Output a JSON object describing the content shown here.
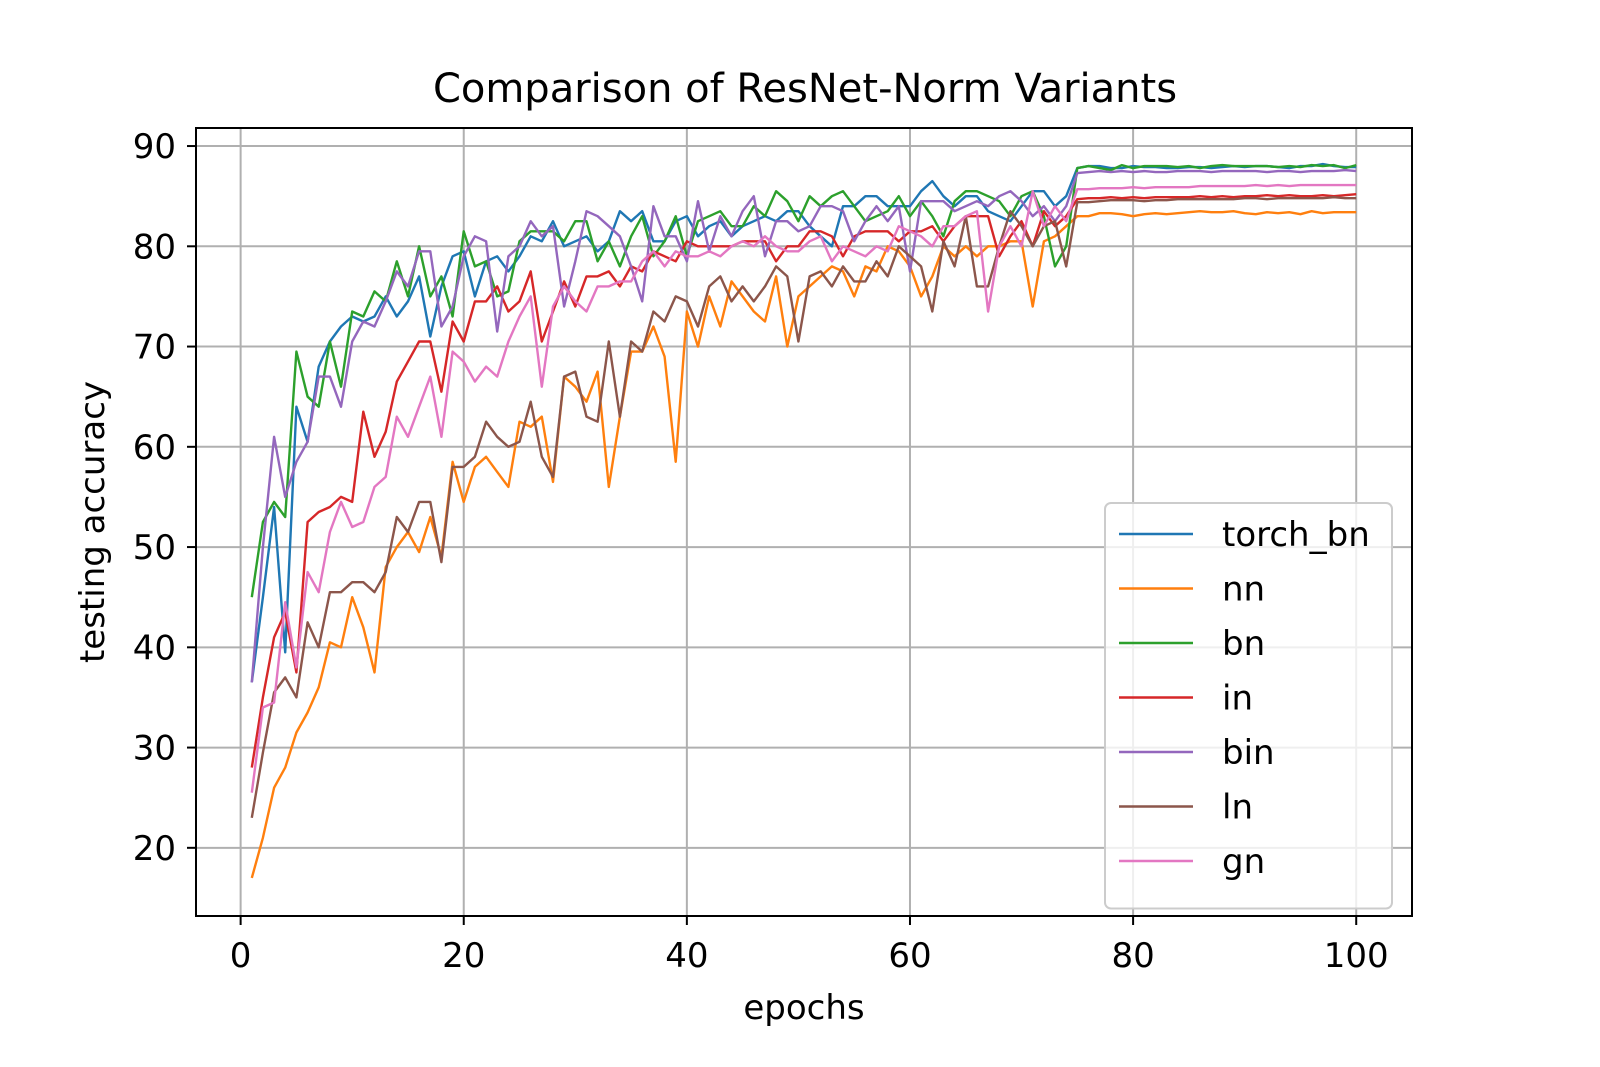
{
  "chart_data": {
    "type": "line",
    "title": "Comparison of ResNet-Norm Variants",
    "xlabel": "epochs",
    "ylabel": "testing accuracy",
    "xlim": [
      -4,
      105
    ],
    "ylim": [
      13.2,
      91.8
    ],
    "xticks": [
      0,
      20,
      40,
      60,
      80,
      100
    ],
    "yticks": [
      20,
      30,
      40,
      50,
      60,
      70,
      80,
      90
    ],
    "grid": true,
    "legend_position": "lower right",
    "x": [
      1,
      2,
      3,
      4,
      5,
      6,
      7,
      8,
      9,
      10,
      11,
      12,
      13,
      14,
      15,
      16,
      17,
      18,
      19,
      20,
      21,
      22,
      23,
      24,
      25,
      26,
      27,
      28,
      29,
      30,
      31,
      32,
      33,
      34,
      35,
      36,
      37,
      38,
      39,
      40,
      41,
      42,
      43,
      44,
      45,
      46,
      47,
      48,
      49,
      50,
      51,
      52,
      53,
      54,
      55,
      56,
      57,
      58,
      59,
      60,
      61,
      62,
      63,
      64,
      65,
      66,
      67,
      68,
      69,
      70,
      71,
      72,
      73,
      74,
      75,
      76,
      77,
      78,
      79,
      80,
      81,
      82,
      83,
      84,
      85,
      86,
      87,
      88,
      89,
      90,
      91,
      92,
      93,
      94,
      95,
      96,
      97,
      98,
      99,
      100
    ],
    "series": [
      {
        "name": "torch_bn",
        "color": "#1f77b4",
        "values": [
          36.5,
          45,
          54,
          39.5,
          64,
          60.5,
          68,
          70.5,
          72,
          73,
          72.5,
          73,
          75,
          73,
          74.5,
          77,
          71,
          76,
          79,
          79.5,
          75,
          78.5,
          79,
          77.5,
          79,
          81,
          80.5,
          82.5,
          80,
          80.5,
          81,
          79.5,
          80.5,
          83.5,
          82.5,
          83.5,
          80.5,
          80.5,
          82.5,
          83,
          81,
          82,
          82.5,
          81,
          82,
          82.5,
          83,
          82.5,
          83.5,
          83.5,
          82,
          81,
          80,
          84,
          84,
          85,
          85,
          84,
          84,
          84,
          85.5,
          86.5,
          85,
          84,
          85,
          85,
          83.5,
          83,
          82.5,
          84,
          85.5,
          85.5,
          84,
          85,
          87.8,
          88,
          88,
          87.8,
          87.8,
          88,
          87.9,
          87.9,
          87.8,
          87.8,
          87.9,
          87.9,
          87.8,
          87.9,
          88,
          87.9,
          88,
          88,
          87.9,
          87.8,
          88,
          88,
          88.2,
          88,
          87.9,
          87.9
        ]
      },
      {
        "name": "nn",
        "color": "#ff7f0e",
        "values": [
          17,
          21,
          26,
          28,
          31.5,
          33.5,
          36,
          40.5,
          40,
          45,
          42,
          37.5,
          48,
          50,
          51.5,
          49.5,
          53,
          49,
          58.5,
          54.5,
          58,
          59,
          57.5,
          56,
          62.5,
          62,
          63,
          56.5,
          67,
          66,
          64.5,
          67.5,
          56,
          63,
          69.5,
          69.5,
          72,
          69,
          58.5,
          73.5,
          70,
          75,
          72,
          76.5,
          75,
          73.5,
          72.5,
          77,
          70,
          75,
          76,
          77,
          78,
          77.5,
          75,
          78,
          77.5,
          80,
          79.5,
          78,
          75,
          77,
          80,
          79,
          80,
          79,
          80,
          80,
          80.5,
          80.5,
          74,
          80.5,
          81,
          82,
          83,
          83,
          83.3,
          83.3,
          83.2,
          83,
          83.2,
          83.3,
          83.2,
          83.3,
          83.4,
          83.5,
          83.4,
          83.4,
          83.5,
          83.3,
          83.2,
          83.4,
          83.3,
          83.4,
          83.2,
          83.5,
          83.3,
          83.4,
          83.4,
          83.4
        ]
      },
      {
        "name": "bn",
        "color": "#2ca02c",
        "values": [
          45,
          52.5,
          54.5,
          53,
          69.5,
          65,
          64,
          70.5,
          66,
          73.5,
          73,
          75.5,
          74.5,
          78.5,
          75,
          80,
          75,
          77,
          73,
          81.5,
          78,
          78.5,
          75,
          75.5,
          80.5,
          81.5,
          81.5,
          81.5,
          80.5,
          82.5,
          82.5,
          78.5,
          80.5,
          78,
          81,
          83,
          79,
          80.5,
          83,
          79,
          82.5,
          83,
          83.5,
          82,
          82,
          84,
          83,
          85.5,
          84.5,
          82.5,
          85,
          84,
          85,
          85.5,
          84,
          82.5,
          83,
          83.5,
          85,
          83,
          84.5,
          83,
          81,
          84.5,
          85.5,
          85.5,
          85,
          84.5,
          83,
          85,
          85.5,
          83,
          78,
          80,
          87.8,
          88,
          87.8,
          87.6,
          88.1,
          87.8,
          88,
          88,
          88,
          87.9,
          88,
          87.8,
          88,
          88.1,
          88,
          88,
          88,
          88,
          87.9,
          88,
          87.9,
          88.1,
          88,
          88.1,
          87.8,
          88.1
        ]
      },
      {
        "name": "in",
        "color": "#d62728",
        "values": [
          28,
          35,
          41,
          43.5,
          37.5,
          52.5,
          53.5,
          54,
          55,
          54.5,
          63.5,
          59,
          61.5,
          66.5,
          68.5,
          70.5,
          70.5,
          65.5,
          72.5,
          70.5,
          74.5,
          74.5,
          76,
          73.5,
          74.5,
          77.5,
          70.5,
          73.5,
          76.5,
          74,
          77,
          77,
          77.5,
          76,
          78,
          77.5,
          79.5,
          79,
          78.5,
          80.5,
          80,
          80,
          80,
          80,
          80.5,
          80.5,
          80.5,
          78.5,
          80,
          80,
          81.5,
          81.5,
          81,
          79,
          81,
          81.5,
          81.5,
          81.5,
          80.5,
          81.5,
          81.5,
          82,
          80.5,
          82,
          83,
          83,
          83,
          79,
          81,
          82.5,
          80,
          83.5,
          82,
          83,
          84.7,
          84.8,
          84.8,
          84.9,
          84.8,
          84.9,
          84.8,
          84.9,
          84.9,
          84.9,
          84.9,
          85,
          84.9,
          85,
          84.9,
          85,
          85,
          85.1,
          85,
          85.1,
          85,
          85,
          85.1,
          85,
          85.1,
          85.2
        ]
      },
      {
        "name": "bin",
        "color": "#9467bd",
        "values": [
          36.5,
          50,
          61,
          55,
          58.5,
          60.5,
          67,
          67,
          64,
          70.5,
          72.5,
          72,
          74.5,
          77.5,
          76,
          79.5,
          79.5,
          72,
          74,
          79,
          81,
          80.5,
          71.5,
          79,
          80,
          82.5,
          81,
          82,
          74,
          78.5,
          83.5,
          83,
          82,
          81,
          78,
          74.5,
          84,
          81,
          81,
          78.5,
          84.5,
          79.5,
          83,
          81,
          83.5,
          85,
          79,
          82.5,
          82.5,
          81.5,
          82,
          84,
          84,
          83.5,
          80.5,
          82.5,
          84,
          82.5,
          84,
          77.5,
          84.5,
          84.5,
          84.5,
          83.5,
          84,
          84.5,
          84,
          85,
          85.5,
          84.5,
          83,
          84,
          82.5,
          84,
          87.3,
          87.4,
          87.5,
          87.4,
          87.5,
          87.4,
          87.5,
          87.4,
          87.4,
          87.5,
          87.5,
          87.5,
          87.4,
          87.5,
          87.5,
          87.5,
          87.5,
          87.4,
          87.5,
          87.5,
          87.4,
          87.5,
          87.5,
          87.5,
          87.6,
          87.5
        ]
      },
      {
        "name": "ln",
        "color": "#8c564b",
        "values": [
          23,
          29.5,
          35.5,
          37,
          35,
          42.5,
          40,
          45.5,
          45.5,
          46.5,
          46.5,
          45.5,
          47.5,
          53,
          51.5,
          54.5,
          54.5,
          48.5,
          58,
          58,
          59,
          62.5,
          61,
          60,
          60.5,
          64.5,
          59,
          57,
          67,
          67.5,
          63,
          62.5,
          70.5,
          63,
          70.5,
          69.5,
          73.5,
          72.5,
          75,
          74.5,
          72,
          76,
          77,
          74.5,
          76,
          74.5,
          76,
          78,
          77,
          70.5,
          77,
          77.5,
          76,
          78,
          76.5,
          76.5,
          78.5,
          77,
          80,
          79,
          78,
          73.5,
          80.5,
          78,
          83,
          76,
          76,
          80,
          83.5,
          82,
          80,
          82,
          82.5,
          78,
          84.4,
          84.4,
          84.5,
          84.6,
          84.6,
          84.6,
          84.5,
          84.6,
          84.6,
          84.7,
          84.7,
          84.7,
          84.7,
          84.7,
          84.7,
          84.8,
          84.8,
          84.7,
          84.8,
          84.8,
          84.8,
          84.8,
          84.8,
          84.9,
          84.8,
          84.8
        ]
      },
      {
        "name": "gn",
        "color": "#e377c2",
        "values": [
          25.5,
          34,
          34.5,
          44.5,
          38,
          47.5,
          45.5,
          51.5,
          54.5,
          52,
          52.5,
          56,
          57,
          63,
          61,
          64,
          67,
          61,
          69.5,
          68.5,
          66.5,
          68,
          67,
          70.5,
          73,
          75,
          66,
          74,
          76,
          74.5,
          73.5,
          76,
          76,
          76.5,
          76.5,
          78.5,
          79.5,
          78,
          79.5,
          79,
          79,
          79.5,
          79,
          80,
          80.5,
          80,
          81,
          80,
          79.5,
          79.5,
          80.5,
          81,
          78.5,
          80,
          79.5,
          79,
          80,
          79.5,
          82,
          81.5,
          81,
          80,
          82,
          82,
          83,
          83.5,
          73.5,
          80,
          82,
          80,
          85.5,
          82,
          84,
          82.5,
          85.7,
          85.7,
          85.8,
          85.8,
          85.8,
          85.9,
          85.8,
          85.9,
          85.9,
          85.9,
          85.9,
          86,
          86,
          86,
          86,
          86,
          86.1,
          86,
          86.1,
          86,
          86.1,
          86.1,
          86.1,
          86.1,
          86.1,
          86.1
        ]
      }
    ]
  }
}
